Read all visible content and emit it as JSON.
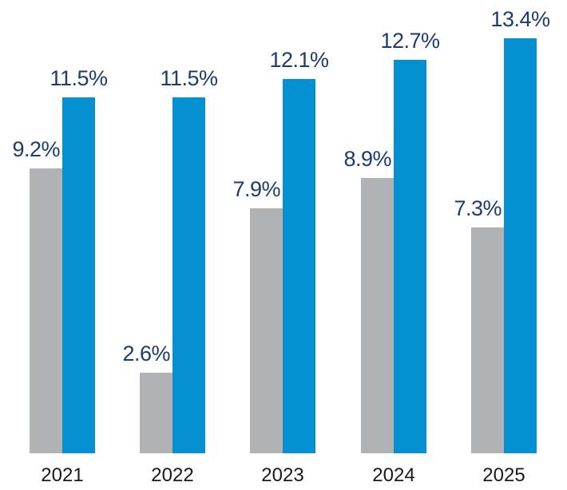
{
  "chart_data": {
    "type": "bar",
    "title": "",
    "xlabel": "",
    "ylabel": "",
    "categories": [
      "2021",
      "2022",
      "2023",
      "2024",
      "2025"
    ],
    "series": [
      {
        "name": "gray-series",
        "color": "#b1b2b4",
        "values": [
          9.2,
          2.6,
          7.9,
          8.9,
          7.3
        ],
        "labels": [
          "9.2%",
          "2.6%",
          "7.9%",
          "8.9%",
          "7.3%"
        ]
      },
      {
        "name": "blue-series",
        "color": "#0590d2",
        "values": [
          11.5,
          11.5,
          12.1,
          12.7,
          13.4
        ],
        "labels": [
          "11.5%",
          "11.5%",
          "12.1%",
          "12.7%",
          "13.4%"
        ]
      }
    ],
    "ylim": [
      0,
      14.6
    ],
    "grid": false,
    "legend": "none",
    "value_label_color": "#1b3c6d",
    "axis_label_color": "#1a1a1a"
  }
}
